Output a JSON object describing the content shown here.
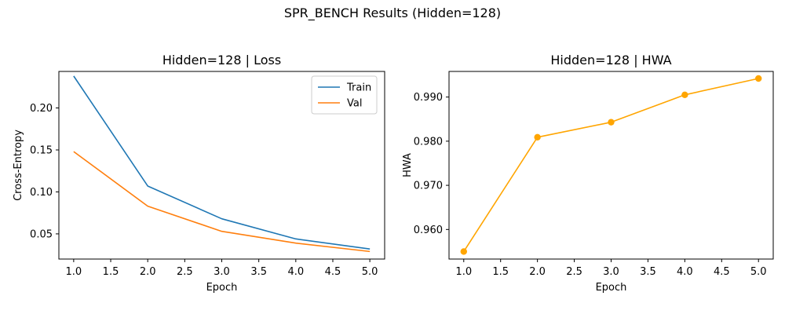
{
  "figure_title": "SPR_BENCH Results (Hidden=128)",
  "chart_data": [
    {
      "type": "line",
      "title": "Hidden=128 | Loss",
      "xlabel": "Epoch",
      "ylabel": "Cross-Entropy",
      "x": [
        1,
        2,
        3,
        4,
        5
      ],
      "xlim": [
        0.8,
        5.2
      ],
      "ylim": [
        0.02,
        0.2435
      ],
      "xticks": [
        "1.0",
        "1.5",
        "2.0",
        "2.5",
        "3.0",
        "3.5",
        "4.0",
        "4.5",
        "5.0"
      ],
      "yticks": [
        "0.05",
        "0.10",
        "0.15",
        "0.20"
      ],
      "grid": false,
      "legend": "top-right",
      "series": [
        {
          "name": "Train",
          "color": "#1f77b4",
          "values": [
            0.238,
            0.107,
            0.068,
            0.044,
            0.032
          ]
        },
        {
          "name": "Val",
          "color": "#ff7f0e",
          "values": [
            0.148,
            0.083,
            0.053,
            0.039,
            0.029
          ]
        }
      ]
    },
    {
      "type": "line",
      "title": "Hidden=128 | HWA",
      "xlabel": "Epoch",
      "ylabel": "HWA",
      "x": [
        1,
        2,
        3,
        4,
        5
      ],
      "xlim": [
        0.8,
        5.2
      ],
      "ylim": [
        0.9533,
        0.9958
      ],
      "xticks": [
        "1.0",
        "1.5",
        "2.0",
        "2.5",
        "3.0",
        "3.5",
        "4.0",
        "4.5",
        "5.0"
      ],
      "yticks": [
        "0.960",
        "0.970",
        "0.980",
        "0.990"
      ],
      "grid": false,
      "markers": true,
      "series": [
        {
          "name": "",
          "color": "#ffa500",
          "values": [
            0.955,
            0.9809,
            0.9843,
            0.9905,
            0.9942
          ]
        }
      ]
    }
  ]
}
